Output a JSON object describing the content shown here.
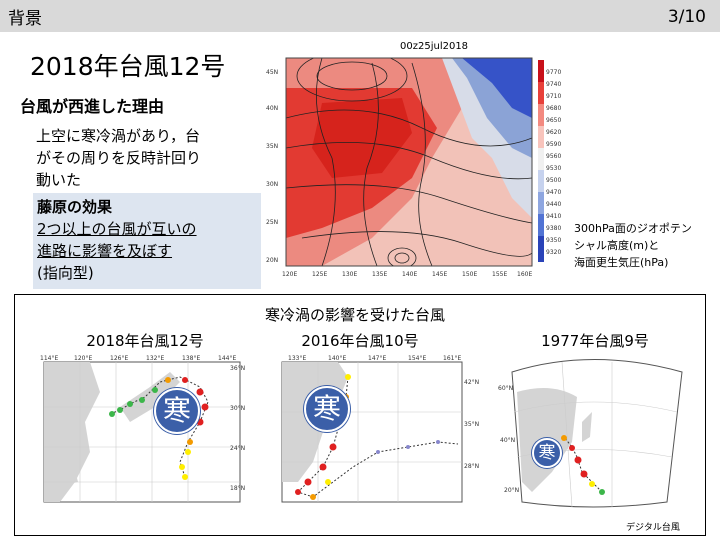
{
  "header": {
    "section": "背景",
    "page": "3/10"
  },
  "title": "2018年台風12号",
  "subtitle": "台風が西進した理由",
  "paragraph_lines": [
    "上空に寒冷渦があり，台",
    "がその周りを反時計回り",
    "動いた"
  ],
  "fujiwara": {
    "heading": "藤原の効果",
    "line1": "2つ以上の台風が互いの",
    "line2": "進路に影響を及ぼす",
    "line3": "(指向型)"
  },
  "top_map": {
    "title": "00z25jul2018",
    "lat_labels": [
      "45N",
      "40N",
      "35N",
      "30N",
      "25N",
      "20N"
    ],
    "lon_labels": [
      "120E",
      "125E",
      "130E",
      "135E",
      "140E",
      "145E",
      "150E",
      "155E",
      "160E"
    ],
    "colorbar_labels": [
      "9770",
      "9740",
      "9710",
      "9680",
      "9650",
      "9620",
      "9590",
      "9560",
      "9530",
      "9500",
      "9470",
      "9440",
      "9410",
      "9380",
      "9350",
      "9320"
    ],
    "caption_lines": [
      "300hPa面のジオポテン",
      "シャル高度(m)と",
      "海面更生気圧(hPa)"
    ]
  },
  "bottom": {
    "heading_line1": "寒冷渦の影響を受けた台風",
    "left_caption": "2018年台風12号",
    "mid_caption": "2016年台風10号",
    "right_caption": "1977年台風9号",
    "cold_label": "寒",
    "credit": "デジタル台風"
  },
  "map1": {
    "top_lons": [
      "114°E",
      "120°E",
      "126°E",
      "132°E",
      "138°E",
      "144°E"
    ],
    "lats": [
      "36°N",
      "30°N",
      "24°N",
      "18°N"
    ]
  },
  "map2": {
    "top_lons": [
      "133°E",
      "140°E",
      "147°E",
      "154°E",
      "161°E"
    ],
    "lats": [
      "42°N",
      "35°N",
      "28°N"
    ]
  },
  "map3": {
    "lats": [
      "60°N",
      "40°N",
      "20°N"
    ]
  }
}
